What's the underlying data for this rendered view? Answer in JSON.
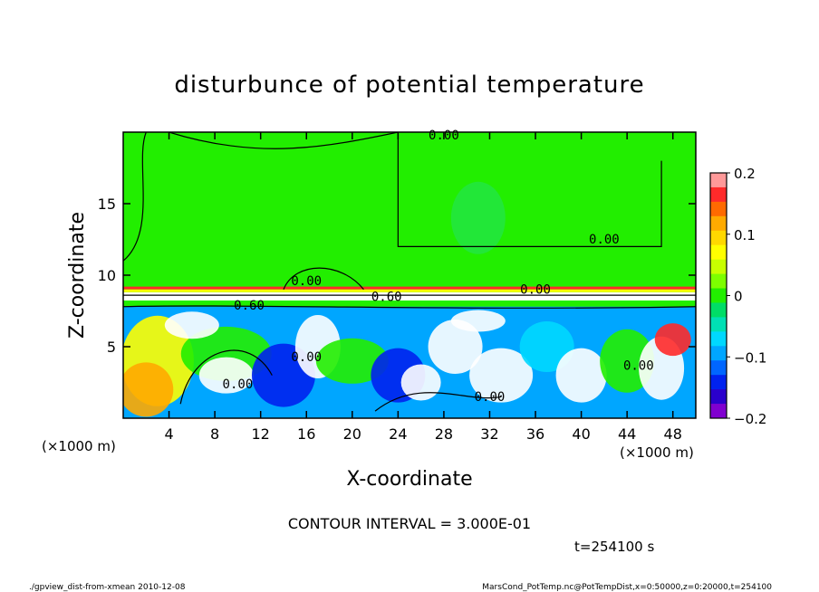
{
  "chart_data": {
    "type": "heatmap",
    "title": "disturbunce of potential temperature",
    "xlabel": "X-coordinate",
    "ylabel": "Z-coordinate",
    "x_unit_note": "(×1000 m)",
    "x_unit_note_right": "(×1000 m)",
    "xlim": [
      0,
      50
    ],
    "ylim": [
      0,
      20
    ],
    "x_ticks": [
      4,
      8,
      12,
      16,
      20,
      24,
      28,
      32,
      36,
      40,
      44,
      48
    ],
    "y_ticks": [
      5,
      10,
      15
    ],
    "colorbar": {
      "range": [
        -0.2,
        0.2
      ],
      "tick_labels": [
        "0.2",
        "0.1",
        "0",
        "−0.1",
        "−0.2"
      ],
      "tick_values": [
        0.2,
        0.1,
        0,
        -0.1,
        -0.2
      ],
      "colors_top_to_bottom": [
        "#ff9999",
        "#ff2a2a",
        "#ff6a00",
        "#ffaa00",
        "#ffd800",
        "#ffff00",
        "#c8ff00",
        "#7dff00",
        "#22ee00",
        "#00dd66",
        "#00e0b4",
        "#00d8ff",
        "#00a6ff",
        "#0066ff",
        "#0022ee",
        "#2a00cc",
        "#8000d0"
      ]
    },
    "contour_labels": [
      "0.00",
      "0.00",
      "0.00",
      "0.60",
      "0.60",
      "0.00",
      "0.00",
      "0.00",
      "0.00",
      "0.00"
    ],
    "contour_interval": "CONTOUR INTERVAL = 3.000E-01",
    "time_label": "t=254100 s",
    "grid": false,
    "background_value": 0,
    "layers": [
      {
        "region": "z 9–20",
        "description": "near-zero field"
      },
      {
        "region": "z ≈ 8.8–9",
        "description": "thin positive band"
      },
      {
        "region": "z 0–8",
        "description": "turbulent mixed layer with strong positive and negative anomalies"
      }
    ]
  },
  "footer": {
    "left": "./gpview_dist-from-xmean  2010-12-08",
    "right": "MarsCond_PotTemp.nc@PotTempDist,x=0:50000,z=0:20000,t=254100"
  },
  "colors": {
    "green": "#22ee00",
    "white": "#ffffff",
    "blue": "#0030ff",
    "cyan": "#00d8ff",
    "red": "#ff2a2a",
    "yellow": "#ffff00",
    "orange": "#ffaa00"
  }
}
